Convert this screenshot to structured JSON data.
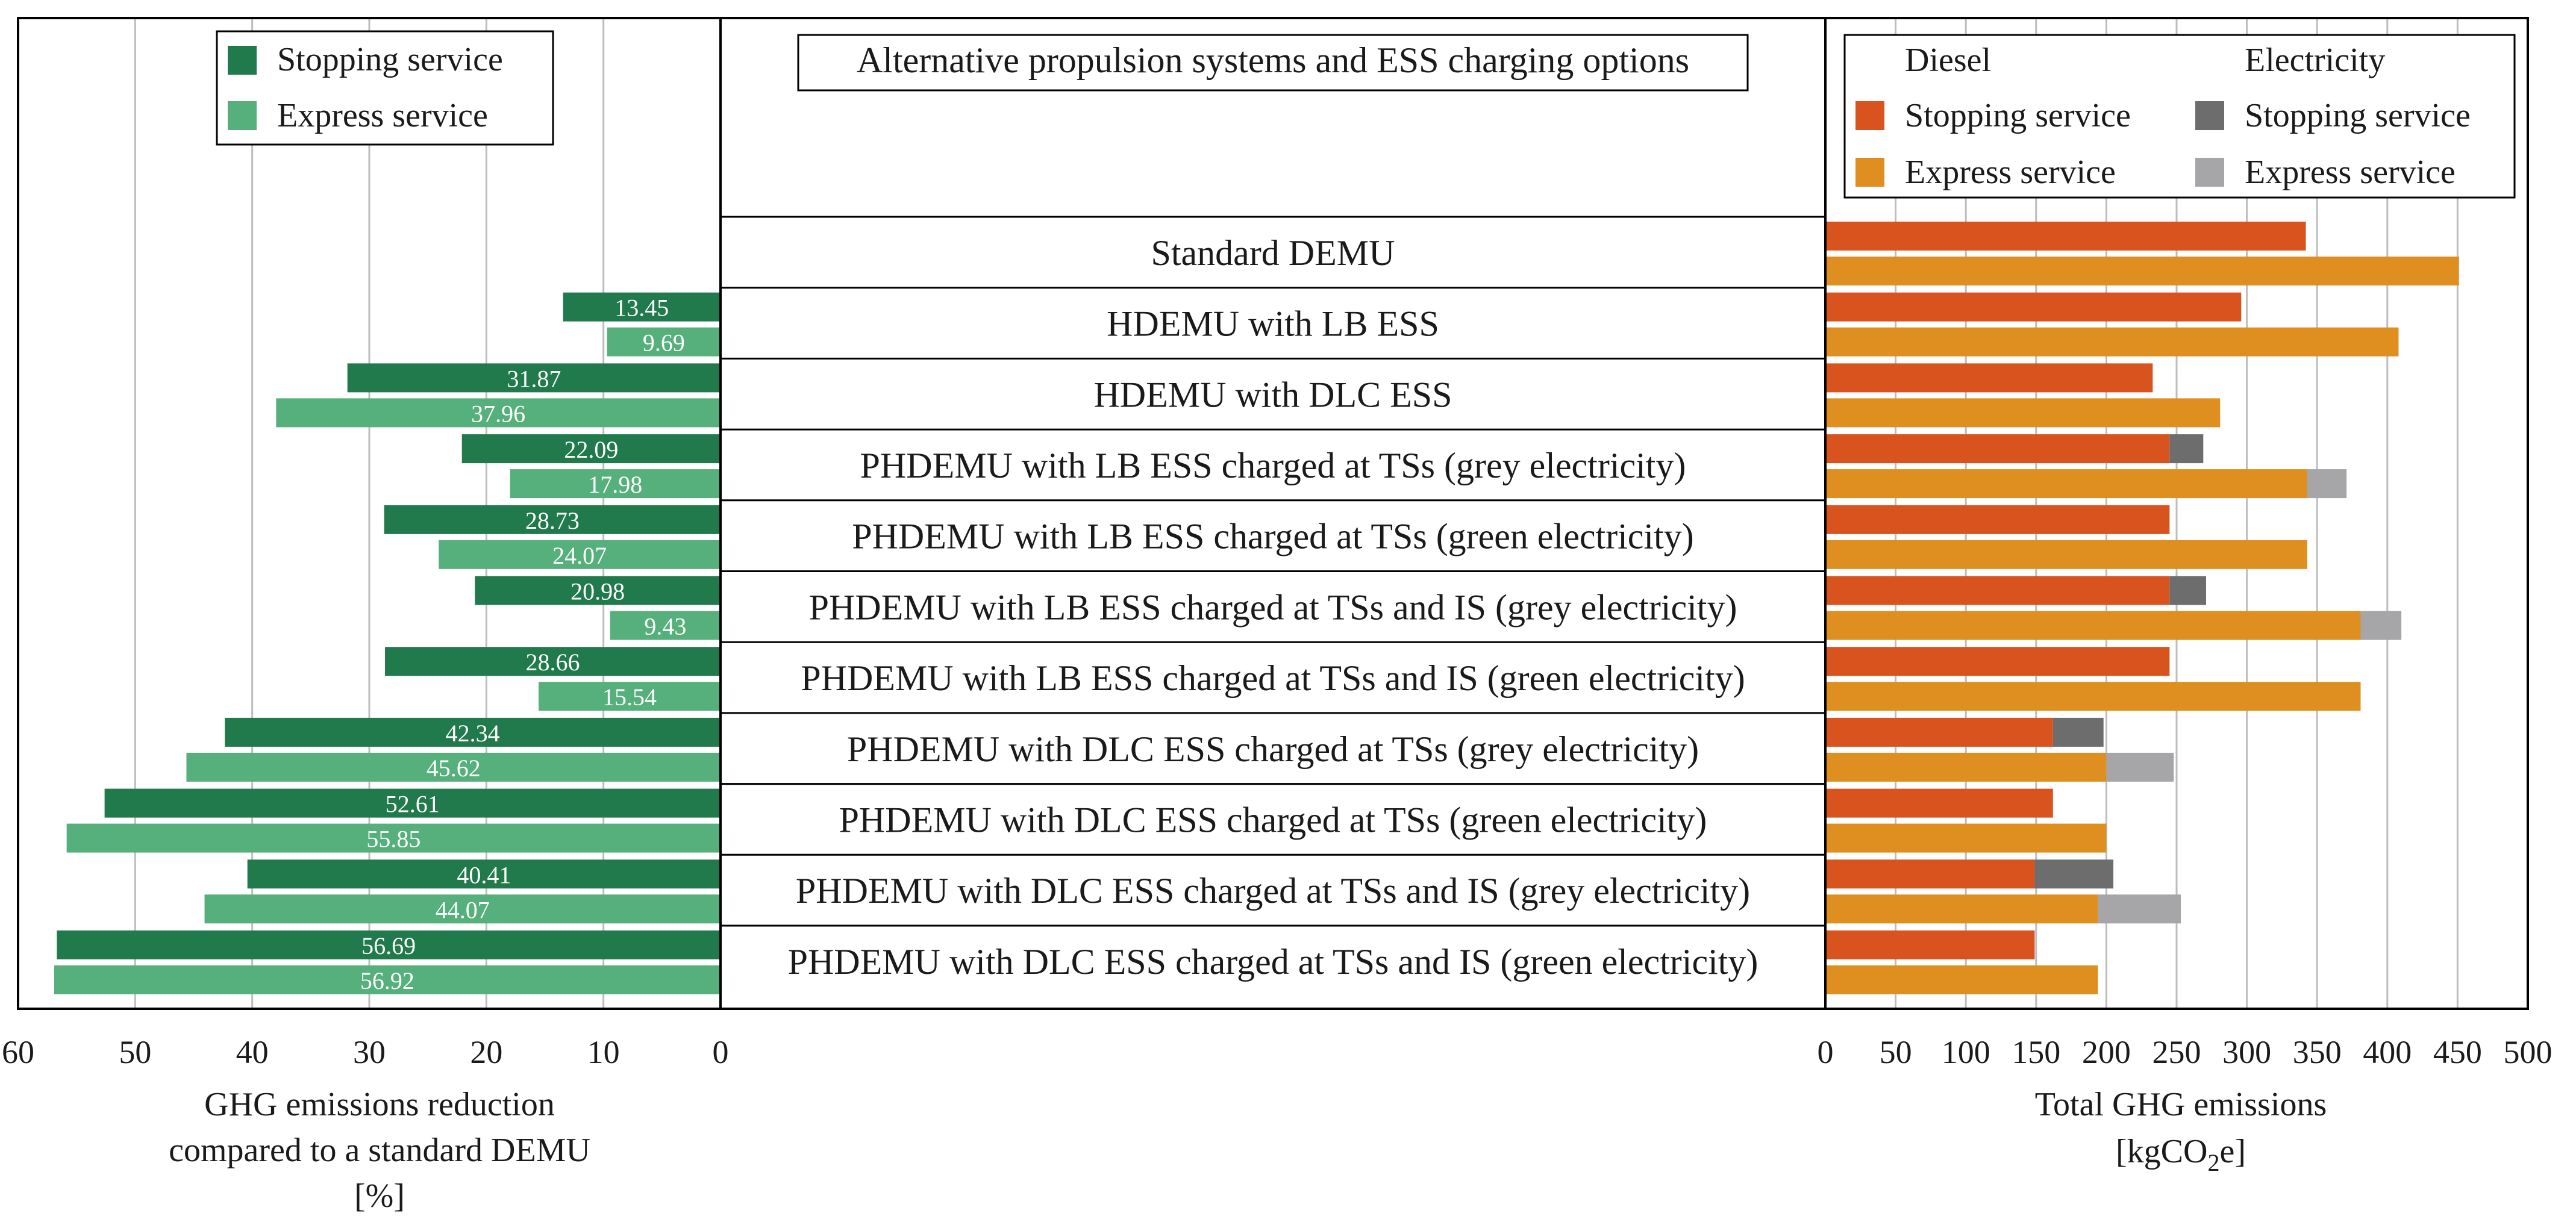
{
  "chart_data": [
    {
      "type": "bar",
      "orientation": "horizontal",
      "direction": "right-to-left",
      "title": "",
      "xlabel": "GHG emissions reduction compared to a standard DEMU [%]",
      "xlabel_lines": [
        "GHG emissions reduction",
        "compared to a standard DEMU",
        "[%]"
      ],
      "xlim": [
        0,
        60
      ],
      "xticks": [
        0,
        10,
        20,
        30,
        40,
        50,
        60
      ],
      "grid": true,
      "legend_position": "top-right",
      "categories": [
        "Standard DEMU",
        "HDEMU with LB ESS",
        "HDEMU with DLC ESS",
        "PHDEMU with LB ESS charged at TSs (grey electricity)",
        "PHDEMU with LB ESS charged at TSs (green electricity)",
        "PHDEMU with LB ESS charged at TSs and IS (grey electricity)",
        "PHDEMU with LB ESS charged at TSs and IS (green electricity)",
        "PHDEMU with DLC ESS charged at TSs (grey electricity)",
        "PHDEMU with DLC ESS charged at TSs (green electricity)",
        "PHDEMU with DLC ESS charged at TSs and IS (grey electricity)",
        "PHDEMU with DLC ESS charged at TSs and IS (green electricity)"
      ],
      "series": [
        {
          "name": "Stopping service",
          "color": "#217a4b",
          "values": [
            null,
            13.45,
            31.87,
            22.09,
            28.73,
            20.98,
            28.66,
            42.34,
            52.61,
            40.41,
            56.69
          ],
          "labels": [
            "",
            "13.45",
            "31.87",
            "22.09",
            "28.73",
            "20.98",
            "28.66",
            "42.34",
            "52.61",
            "40.41",
            "56.69"
          ]
        },
        {
          "name": "Express service",
          "color": "#56b07c",
          "values": [
            null,
            9.69,
            37.96,
            17.98,
            24.07,
            9.43,
            15.54,
            45.62,
            55.85,
            44.07,
            56.92
          ],
          "labels": [
            "",
            "9.69",
            "37.96",
            "17.98",
            "24.07",
            "9.43",
            "15.54",
            "45.62",
            "55.85",
            "44.07",
            "56.92"
          ]
        }
      ]
    },
    {
      "type": "bar",
      "orientation": "horizontal",
      "stacked": true,
      "title": "",
      "xlabel": "Total GHG emissions [kgCO2e]",
      "xlabel_line1": "Total GHG emissions",
      "xlabel_unit_pre": "[kgCO",
      "xlabel_unit_sub": "2",
      "xlabel_unit_post": "e]",
      "xlim": [
        0,
        500
      ],
      "xticks": [
        0,
        50,
        100,
        150,
        200,
        250,
        300,
        350,
        400,
        450,
        500
      ],
      "grid": true,
      "legend_position": "top-right",
      "legend_group_titles": [
        "Diesel",
        "Electricity"
      ],
      "series": [
        {
          "name": "Stopping service",
          "group": "Diesel",
          "color": "#d9531e",
          "values": [
            342,
            296,
            233,
            245,
            245,
            245,
            245,
            162,
            162,
            149,
            149
          ]
        },
        {
          "name": "Stopping service",
          "group": "Electricity",
          "color": "#6d6d6d",
          "values": [
            0,
            0,
            0,
            24,
            0,
            26,
            0,
            36,
            0,
            56,
            0
          ]
        },
        {
          "name": "Express service",
          "group": "Diesel",
          "color": "#de8f1f",
          "values": [
            451,
            408,
            281,
            343,
            343,
            381,
            381,
            200,
            200,
            194,
            194
          ]
        },
        {
          "name": "Express service",
          "group": "Electricity",
          "color": "#a6a6a8",
          "values": [
            0,
            0,
            0,
            28,
            0,
            29,
            0,
            48,
            0,
            59,
            0
          ]
        }
      ]
    }
  ],
  "center_title": "Alternative propulsion systems and ESS charging options"
}
